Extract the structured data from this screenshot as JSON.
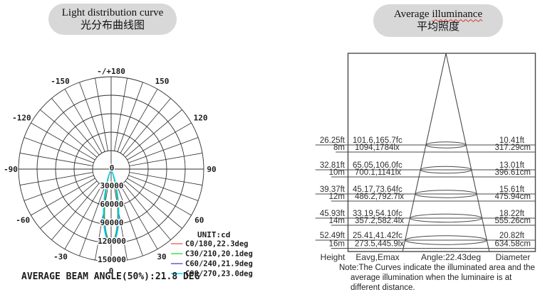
{
  "left_panel": {
    "title_en": "Light distribution curve",
    "title_zh": "光分布曲线图"
  },
  "right_panel": {
    "title_en_word1": "Average",
    "title_en_word2": "illuminance",
    "title_zh": "平均照度",
    "footer": {
      "height": "Height",
      "eavg": "Eavg,Emax",
      "angle": "Angle:22.43deg",
      "diameter": "Diameter"
    },
    "note_lines": [
      "Note:The Curves indicate the illuminated area and the",
      "average illumination when the luminaire is at",
      "different distance."
    ]
  },
  "chart_data": [
    {
      "type": "line",
      "subtype": "polar-light-distribution",
      "title": "Light distribution curve / 光分布曲线图",
      "unit_label": "UNIT:cd",
      "caption": "AVERAGE BEAM ANGLE(50%):21.8 DEG",
      "average_beam_angle_50pct_deg": 21.8,
      "radial_axis": {
        "unit": "cd",
        "min": 0,
        "max": 150000,
        "ticks": [
          0,
          30000,
          60000,
          90000,
          120000,
          150000
        ]
      },
      "angle_ticks": [
        {
          "label": "-/+180",
          "deg": 180
        },
        {
          "label": "-150",
          "deg": -150
        },
        {
          "label": "150",
          "deg": 150
        },
        {
          "label": "-120",
          "deg": -120
        },
        {
          "label": "120",
          "deg": 120
        },
        {
          "label": "-90",
          "deg": -90
        },
        {
          "label": "90",
          "deg": 90
        },
        {
          "label": "-60",
          "deg": -60
        },
        {
          "label": "60",
          "deg": 60
        },
        {
          "label": "-30",
          "deg": -30
        },
        {
          "label": "30",
          "deg": 30
        },
        {
          "label": "0",
          "deg": 0
        }
      ],
      "series": [
        {
          "name": "C0/180,22.3deg",
          "plane": "C0/180",
          "beam_angle_deg": 22.3,
          "peak_cd": 119000,
          "color": "#f96a6a"
        },
        {
          "name": "C30/210,20.1deg",
          "plane": "C30/210",
          "beam_angle_deg": 20.1,
          "peak_cd": 117500,
          "color": "#46dd46"
        },
        {
          "name": "C60/240,21.9deg",
          "plane": "C60/240",
          "beam_angle_deg": 21.9,
          "peak_cd": 119000,
          "color": "#5c5ce6"
        },
        {
          "name": "C90/270,23.0deg",
          "plane": "C90/270",
          "beam_angle_deg": 23.0,
          "peak_cd": 121500,
          "color": "#00dcee"
        }
      ],
      "grid": {
        "angular_step_deg": 10,
        "rings": 5,
        "line_color": "#2f2f2f"
      }
    },
    {
      "type": "table",
      "subtype": "illuminance-cone-diagram",
      "title": "Average illuminance / 平均照度",
      "beam_angle_deg": 22.43,
      "columns": [
        "Height",
        "Eavg,Emax",
        "Angle:22.43deg",
        "Diameter"
      ],
      "rows": [
        {
          "height_ft": "26.25ft",
          "height_m": "8m",
          "e_fc": "101.6,165.7fc",
          "e_lx": "1094,1784lx",
          "dia_ft": "10.41ft",
          "dia_cm": "317.29cm"
        },
        {
          "height_ft": "32.81ft",
          "height_m": "10m",
          "e_fc": "65.05,106.0fc",
          "e_lx": "700.1,1141lx",
          "dia_ft": "13.01ft",
          "dia_cm": "396.61cm"
        },
        {
          "height_ft": "39.37ft",
          "height_m": "12m",
          "e_fc": "45.17,73.64fc",
          "e_lx": "486.2,792.7lx",
          "dia_ft": "15.61ft",
          "dia_cm": "475.94cm"
        },
        {
          "height_ft": "45.93ft",
          "height_m": "14m",
          "e_fc": "33.19,54.10fc",
          "e_lx": "357.2,582.4lx",
          "dia_ft": "18.22ft",
          "dia_cm": "555.26cm"
        },
        {
          "height_ft": "52.49ft",
          "height_m": "16m",
          "e_fc": "25.41,41.42fc",
          "e_lx": "273.5,445.9lx",
          "dia_ft": "20.82ft",
          "dia_cm": "634.58cm"
        }
      ],
      "line_color": "#4a4a4a"
    }
  ]
}
